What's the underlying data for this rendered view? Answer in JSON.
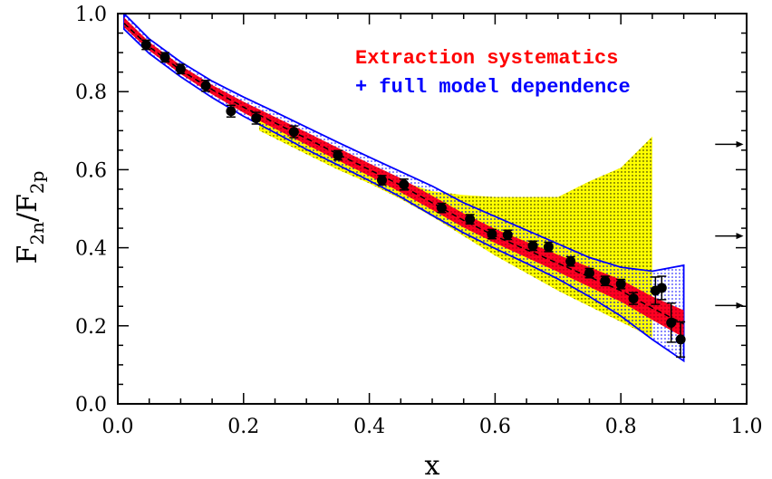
{
  "chart_data": {
    "type": "scatter",
    "title": "",
    "xlabel": "x",
    "ylabel": {
      "base": "F",
      "num_sub": "2n",
      "den_sub": "2p"
    },
    "xlim": [
      0.0,
      1.0
    ],
    "ylim": [
      0.0,
      1.0
    ],
    "xticks": [
      "0.0",
      "0.2",
      "0.4",
      "0.6",
      "0.8",
      "1.0"
    ],
    "yticks": [
      "0.0",
      "0.2",
      "0.4",
      "0.6",
      "0.8",
      "1.0"
    ],
    "xtick_values": [
      0.0,
      0.2,
      0.4,
      0.6,
      0.8,
      1.0
    ],
    "ytick_values": [
      0.0,
      0.2,
      0.4,
      0.6,
      0.8,
      1.0
    ],
    "grid": false,
    "legend": {
      "placement": "top-right",
      "entries": [
        {
          "text": "Extraction systematics",
          "color": "#ff0000"
        },
        {
          "text": "+ full model dependence",
          "color": "#0000ff"
        }
      ]
    },
    "colors": {
      "red_band": "#ff0022",
      "blue_band": "#0000ff",
      "yellow_band": "#ffff00",
      "points": "#000000"
    },
    "central_curve": {
      "x": [
        0.01,
        0.05,
        0.1,
        0.15,
        0.2,
        0.25,
        0.3,
        0.35,
        0.4,
        0.45,
        0.5,
        0.55,
        0.6,
        0.65,
        0.7,
        0.75,
        0.8,
        0.85,
        0.9
      ],
      "y": [
        0.975,
        0.915,
        0.855,
        0.805,
        0.76,
        0.72,
        0.68,
        0.64,
        0.6,
        0.56,
        0.515,
        0.47,
        0.43,
        0.395,
        0.36,
        0.325,
        0.29,
        0.245,
        0.205
      ]
    },
    "extraction_band": {
      "x": [
        0.01,
        0.05,
        0.1,
        0.15,
        0.2,
        0.25,
        0.3,
        0.35,
        0.4,
        0.45,
        0.5,
        0.55,
        0.6,
        0.65,
        0.7,
        0.75,
        0.8,
        0.85,
        0.9
      ],
      "lower": [
        0.965,
        0.905,
        0.845,
        0.793,
        0.746,
        0.705,
        0.664,
        0.624,
        0.584,
        0.542,
        0.497,
        0.452,
        0.412,
        0.375,
        0.338,
        0.3,
        0.262,
        0.215,
        0.17
      ],
      "upper": [
        0.99,
        0.927,
        0.867,
        0.817,
        0.774,
        0.735,
        0.696,
        0.656,
        0.616,
        0.578,
        0.533,
        0.488,
        0.448,
        0.415,
        0.382,
        0.35,
        0.318,
        0.275,
        0.24
      ]
    },
    "model_band": {
      "x": [
        0.01,
        0.05,
        0.1,
        0.15,
        0.2,
        0.25,
        0.3,
        0.35,
        0.4,
        0.45,
        0.5,
        0.55,
        0.6,
        0.65,
        0.7,
        0.75,
        0.8,
        0.85,
        0.9
      ],
      "lower": [
        0.96,
        0.898,
        0.838,
        0.785,
        0.737,
        0.695,
        0.652,
        0.612,
        0.572,
        0.53,
        0.483,
        0.438,
        0.398,
        0.36,
        0.32,
        0.275,
        0.225,
        0.165,
        0.11
      ],
      "upper": [
        1.0,
        0.935,
        0.876,
        0.827,
        0.786,
        0.748,
        0.709,
        0.67,
        0.632,
        0.595,
        0.558,
        0.515,
        0.48,
        0.445,
        0.41,
        0.375,
        0.35,
        0.34,
        0.355
      ]
    },
    "model_dependence_band": {
      "x": [
        0.225,
        0.25,
        0.3,
        0.35,
        0.4,
        0.45,
        0.5,
        0.55,
        0.6,
        0.65,
        0.7,
        0.75,
        0.8,
        0.85
      ],
      "lower": [
        0.7,
        0.68,
        0.64,
        0.6,
        0.565,
        0.525,
        0.48,
        0.43,
        0.38,
        0.335,
        0.29,
        0.25,
        0.21,
        0.17
      ],
      "upper": [
        0.735,
        0.725,
        0.69,
        0.65,
        0.61,
        0.57,
        0.545,
        0.535,
        0.53,
        0.53,
        0.53,
        0.57,
        0.605,
        0.685
      ]
    },
    "data_points": {
      "x": [
        0.045,
        0.075,
        0.1,
        0.14,
        0.18,
        0.22,
        0.28,
        0.35,
        0.42,
        0.455,
        0.515,
        0.56,
        0.595,
        0.62,
        0.66,
        0.685,
        0.72,
        0.75,
        0.775,
        0.8,
        0.82,
        0.855,
        0.865,
        0.88,
        0.895
      ],
      "y": [
        0.92,
        0.888,
        0.858,
        0.815,
        0.75,
        0.732,
        0.697,
        0.637,
        0.573,
        0.562,
        0.502,
        0.473,
        0.435,
        0.433,
        0.405,
        0.402,
        0.365,
        0.335,
        0.315,
        0.307,
        0.27,
        0.29,
        0.297,
        0.208,
        0.165
      ],
      "yerr": [
        0.012,
        0.012,
        0.012,
        0.014,
        0.015,
        0.015,
        0.015,
        0.012,
        0.012,
        0.014,
        0.012,
        0.012,
        0.012,
        0.012,
        0.012,
        0.012,
        0.012,
        0.012,
        0.012,
        0.012,
        0.015,
        0.035,
        0.03,
        0.05,
        0.045
      ]
    },
    "arrows": {
      "x_start": 0.95,
      "x_end": 0.995,
      "y": [
        0.665,
        0.43,
        0.252
      ]
    }
  }
}
